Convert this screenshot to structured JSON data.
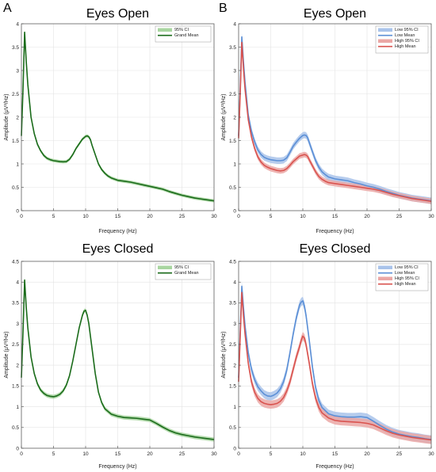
{
  "panel_letters": {
    "left": "A",
    "right": "B"
  },
  "chart_data": [
    {
      "type": "line",
      "title": "Eyes Open",
      "xlabel": "Frequency (Hz)",
      "ylabel": "Amplitude (μV²/Hz)",
      "xlim": [
        0,
        30
      ],
      "ylim": [
        0,
        4
      ],
      "xticks": [
        0,
        5,
        10,
        15,
        20,
        25,
        30
      ],
      "yticks": [
        0,
        0.5,
        1,
        1.5,
        2,
        2.5,
        3,
        3.5,
        4
      ],
      "grid": true,
      "legend_position": "top-right",
      "legend": [
        "95% CI",
        "Grand Mean"
      ],
      "x": [
        0,
        0.25,
        0.5,
        0.75,
        1,
        1.5,
        2,
        2.5,
        3,
        3.5,
        4,
        4.5,
        5,
        5.5,
        6,
        6.5,
        7,
        7.5,
        8,
        8.5,
        9,
        9.5,
        10,
        10.25,
        10.5,
        10.75,
        11,
        11.5,
        12,
        12.5,
        13,
        13.5,
        14,
        15,
        16,
        17,
        18,
        19,
        20,
        21,
        22,
        23,
        24,
        25,
        26,
        27,
        28,
        29,
        30
      ],
      "series": [
        {
          "name": "Grand Mean",
          "values": [
            1.6,
            2.6,
            3.82,
            3.2,
            2.7,
            2.0,
            1.65,
            1.42,
            1.28,
            1.18,
            1.12,
            1.09,
            1.07,
            1.06,
            1.05,
            1.045,
            1.05,
            1.1,
            1.2,
            1.33,
            1.43,
            1.53,
            1.59,
            1.6,
            1.58,
            1.52,
            1.4,
            1.2,
            1.0,
            0.88,
            0.8,
            0.74,
            0.7,
            0.65,
            0.63,
            0.61,
            0.58,
            0.55,
            0.52,
            0.49,
            0.46,
            0.41,
            0.37,
            0.33,
            0.3,
            0.27,
            0.25,
            0.23,
            0.21
          ],
          "ci": 0.035,
          "color": "#1a6b1a",
          "ci_color": "#a8d5a0"
        }
      ]
    },
    {
      "type": "line",
      "title": "Eyes Open",
      "xlabel": "Frequency (Hz)",
      "ylabel": "Amplitude (μV²/Hz)",
      "xlim": [
        0,
        30
      ],
      "ylim": [
        0,
        4
      ],
      "xticks": [
        0,
        5,
        10,
        15,
        20,
        25,
        30
      ],
      "yticks": [
        0,
        0.5,
        1,
        1.5,
        2,
        2.5,
        3,
        3.5,
        4
      ],
      "grid": true,
      "legend_position": "top-right",
      "legend": [
        "Low 95% CI",
        "Low Mean",
        "High 95% CI",
        "High Mean"
      ],
      "x": [
        0,
        0.25,
        0.5,
        0.75,
        1,
        1.5,
        2,
        2.5,
        3,
        3.5,
        4,
        4.5,
        5,
        5.5,
        6,
        6.5,
        7,
        7.5,
        8,
        8.5,
        9,
        9.5,
        10,
        10.25,
        10.5,
        10.75,
        11,
        11.5,
        12,
        12.5,
        13,
        13.5,
        14,
        15,
        16,
        17,
        18,
        19,
        20,
        21,
        22,
        23,
        24,
        25,
        26,
        27,
        28,
        29,
        30
      ],
      "series": [
        {
          "name": "Low Mean",
          "values": [
            1.6,
            2.6,
            3.72,
            3.2,
            2.75,
            2.05,
            1.7,
            1.47,
            1.3,
            1.2,
            1.14,
            1.11,
            1.09,
            1.08,
            1.07,
            1.07,
            1.08,
            1.13,
            1.25,
            1.38,
            1.47,
            1.55,
            1.61,
            1.62,
            1.61,
            1.56,
            1.46,
            1.26,
            1.07,
            0.93,
            0.83,
            0.77,
            0.72,
            0.68,
            0.66,
            0.64,
            0.6,
            0.57,
            0.53,
            0.5,
            0.46,
            0.41,
            0.37,
            0.33,
            0.3,
            0.27,
            0.25,
            0.23,
            0.21
          ],
          "ci": 0.07,
          "color": "#5b8fd6",
          "ci_color": "#a9c3ea"
        },
        {
          "name": "High Mean",
          "values": [
            1.55,
            2.5,
            3.6,
            3.05,
            2.6,
            1.95,
            1.58,
            1.33,
            1.15,
            1.04,
            0.97,
            0.93,
            0.9,
            0.88,
            0.86,
            0.85,
            0.86,
            0.9,
            0.97,
            1.05,
            1.11,
            1.17,
            1.19,
            1.2,
            1.19,
            1.16,
            1.09,
            0.96,
            0.83,
            0.73,
            0.67,
            0.63,
            0.6,
            0.58,
            0.56,
            0.54,
            0.52,
            0.5,
            0.48,
            0.46,
            0.43,
            0.39,
            0.35,
            0.32,
            0.29,
            0.26,
            0.24,
            0.22,
            0.2
          ],
          "ci": 0.06,
          "color": "#d9534f",
          "ci_color": "#eba7a5"
        }
      ]
    },
    {
      "type": "line",
      "title": "Eyes Closed",
      "xlabel": "Frequency (Hz)",
      "ylabel": "Amplitude (μV²/Hz)",
      "xlim": [
        0,
        30
      ],
      "ylim": [
        0,
        4.5
      ],
      "xticks": [
        0,
        5,
        10,
        15,
        20,
        25,
        30
      ],
      "yticks": [
        0,
        0.5,
        1,
        1.5,
        2,
        2.5,
        3,
        3.5,
        4,
        4.5
      ],
      "grid": true,
      "legend_position": "top-right",
      "legend": [
        "95% CI",
        "Grand Mean"
      ],
      "x": [
        0,
        0.25,
        0.5,
        0.75,
        1,
        1.5,
        2,
        2.5,
        3,
        3.5,
        4,
        4.5,
        5,
        5.5,
        6,
        6.5,
        7,
        7.5,
        8,
        8.5,
        9,
        9.5,
        9.75,
        10,
        10.25,
        10.5,
        11,
        11.5,
        12,
        12.5,
        13,
        14,
        15,
        16,
        17,
        18,
        19,
        20,
        21,
        22,
        23,
        24,
        25,
        26,
        27,
        28,
        29,
        30
      ],
      "series": [
        {
          "name": "Grand Mean",
          "values": [
            1.7,
            2.8,
            4.05,
            3.4,
            2.9,
            2.2,
            1.8,
            1.55,
            1.4,
            1.32,
            1.27,
            1.25,
            1.24,
            1.26,
            1.3,
            1.38,
            1.52,
            1.75,
            2.1,
            2.5,
            2.9,
            3.2,
            3.3,
            3.32,
            3.2,
            3.0,
            2.4,
            1.8,
            1.35,
            1.1,
            0.95,
            0.82,
            0.77,
            0.74,
            0.73,
            0.72,
            0.7,
            0.68,
            0.6,
            0.51,
            0.43,
            0.37,
            0.33,
            0.3,
            0.27,
            0.25,
            0.23,
            0.21
          ],
          "ci": 0.05,
          "color": "#1a6b1a",
          "ci_color": "#a8d5a0"
        }
      ]
    },
    {
      "type": "line",
      "title": "Eyes Closed",
      "xlabel": "Frequency (Hz)",
      "ylabel": "Amplitude (μV²/Hz)",
      "xlim": [
        0,
        30
      ],
      "ylim": [
        0,
        4.5
      ],
      "xticks": [
        0,
        5,
        10,
        15,
        20,
        25,
        30
      ],
      "yticks": [
        0,
        0.5,
        1,
        1.5,
        2,
        2.5,
        3,
        3.5,
        4,
        4.5
      ],
      "grid": true,
      "legend_position": "top-right",
      "legend": [
        "Low 95% CI",
        "Low Mean",
        "High 95% CI",
        "High Mean"
      ],
      "x": [
        0,
        0.25,
        0.5,
        0.75,
        1,
        1.5,
        2,
        2.5,
        3,
        3.5,
        4,
        4.5,
        5,
        5.5,
        6,
        6.5,
        7,
        7.5,
        8,
        8.5,
        9,
        9.5,
        9.75,
        10,
        10.25,
        10.5,
        11,
        11.5,
        12,
        12.5,
        13,
        14,
        15,
        16,
        17,
        18,
        19,
        20,
        21,
        22,
        23,
        24,
        25,
        26,
        27,
        28,
        29,
        30
      ],
      "series": [
        {
          "name": "Low Mean",
          "values": [
            1.7,
            2.8,
            3.9,
            3.4,
            2.95,
            2.3,
            1.9,
            1.65,
            1.48,
            1.38,
            1.3,
            1.26,
            1.25,
            1.28,
            1.33,
            1.43,
            1.6,
            1.88,
            2.3,
            2.75,
            3.15,
            3.45,
            3.52,
            3.55,
            3.42,
            3.2,
            2.6,
            1.95,
            1.45,
            1.15,
            0.98,
            0.83,
            0.78,
            0.76,
            0.75,
            0.75,
            0.76,
            0.74,
            0.65,
            0.55,
            0.46,
            0.39,
            0.34,
            0.31,
            0.28,
            0.26,
            0.23,
            0.21
          ],
          "ci": 0.1,
          "color": "#5b8fd6",
          "ci_color": "#a9c3ea"
        },
        {
          "name": "High Mean",
          "values": [
            1.6,
            2.7,
            3.75,
            3.2,
            2.75,
            2.05,
            1.6,
            1.35,
            1.2,
            1.12,
            1.08,
            1.06,
            1.05,
            1.06,
            1.08,
            1.13,
            1.22,
            1.38,
            1.6,
            1.9,
            2.2,
            2.45,
            2.6,
            2.7,
            2.65,
            2.5,
            2.05,
            1.55,
            1.2,
            0.98,
            0.85,
            0.73,
            0.67,
            0.65,
            0.64,
            0.63,
            0.62,
            0.6,
            0.56,
            0.49,
            0.42,
            0.36,
            0.32,
            0.29,
            0.26,
            0.24,
            0.22,
            0.2
          ],
          "ci": 0.1,
          "color": "#d9534f",
          "ci_color": "#eba7a5"
        }
      ]
    }
  ]
}
